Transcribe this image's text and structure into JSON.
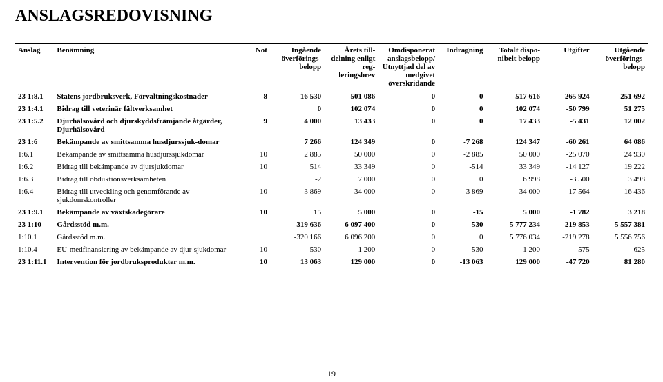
{
  "title": "ANSLAGSREDOVISNING",
  "header": {
    "anslag": "Anslag",
    "benamning": "Benämning",
    "not": "Not",
    "ingaende": "Ingående överförings-belopp",
    "arets": "Årets till-delning enligt reg-leringsbrev",
    "omdisp": "Omdisponerat anslagsbelopp/ Utnyttjad del av medgivet överskridande",
    "indragning": "Indragning",
    "totalt": "Totalt dispo-nibelt belopp",
    "utgifter": "Utgifter",
    "utgaende": "Utgående överförings-belopp"
  },
  "rows": [
    {
      "bold": true,
      "anslag": "23 1:8.1",
      "name": "Statens jordbruksverk, Förvaltningskostnader",
      "not": "8",
      "in": "16 530",
      "arets": "501 086",
      "omd": "0",
      "indr": "0",
      "tot": "517 616",
      "utg": "-265 924",
      "ut": "251 692"
    },
    {
      "bold": true,
      "anslag": "23 1:4.1",
      "name": "Bidrag till veterinär fältverksamhet",
      "not": "",
      "in": "0",
      "arets": "102 074",
      "omd": "0",
      "indr": "0",
      "tot": "102 074",
      "utg": "-50 799",
      "ut": "51 275"
    },
    {
      "bold": true,
      "anslag": "23 1:5.2",
      "name": "Djurhälsovård och djurskyddsfrämjande åtgärder, Djurhälsovård",
      "not": "9",
      "in": "4 000",
      "arets": "13 433",
      "omd": "0",
      "indr": "0",
      "tot": "17 433",
      "utg": "-5 431",
      "ut": "12 002"
    },
    {
      "bold": true,
      "anslag": "23 1:6",
      "name": "Bekämpande av smittsamma husdjurssjuk-domar",
      "not": "",
      "in": "7 266",
      "arets": "124 349",
      "omd": "0",
      "indr": "-7 268",
      "tot": "124 347",
      "utg": "-60 261",
      "ut": "64 086"
    },
    {
      "bold": false,
      "anslag": "1:6.1",
      "name": "Bekämpande av smittsamma husdjurssjukdomar",
      "not": "10",
      "in": "2 885",
      "arets": "50 000",
      "omd": "0",
      "indr": "-2 885",
      "tot": "50 000",
      "utg": "-25 070",
      "ut": "24 930"
    },
    {
      "bold": false,
      "anslag": "1:6.2",
      "name": "Bidrag till bekämpande av djursjukdomar",
      "not": "10",
      "in": "514",
      "arets": "33 349",
      "omd": "0",
      "indr": "-514",
      "tot": "33 349",
      "utg": "-14 127",
      "ut": "19 222"
    },
    {
      "bold": false,
      "anslag": "1:6.3",
      "name": "Bidrag till obduktionsverksamheten",
      "not": "",
      "in": "-2",
      "arets": "7 000",
      "omd": "0",
      "indr": "0",
      "tot": "6 998",
      "utg": "-3 500",
      "ut": "3 498"
    },
    {
      "bold": false,
      "anslag": "1:6.4",
      "name": "Bidrag till utveckling och genomförande av sjukdomskontroller",
      "not": "10",
      "in": "3 869",
      "arets": "34 000",
      "omd": "0",
      "indr": "-3 869",
      "tot": "34 000",
      "utg": "-17 564",
      "ut": "16 436"
    },
    {
      "bold": true,
      "anslag": "23 1:9.1",
      "name": "Bekämpande av växtskadegörare",
      "not": "10",
      "in": "15",
      "arets": "5 000",
      "omd": "0",
      "indr": "-15",
      "tot": "5 000",
      "utg": "-1 782",
      "ut": "3 218"
    },
    {
      "bold": true,
      "anslag": "23 1:10",
      "name": "Gårdsstöd m.m.",
      "not": "",
      "in": "-319 636",
      "arets": "6 097 400",
      "omd": "0",
      "indr": "-530",
      "tot": "5 777 234",
      "utg": "-219 853",
      "ut": "5 557 381"
    },
    {
      "bold": false,
      "anslag": "1:10.1",
      "name": "Gårdsstöd m.m.",
      "not": "",
      "in": "-320 166",
      "arets": "6 096 200",
      "omd": "0",
      "indr": "0",
      "tot": "5 776 034",
      "utg": "-219 278",
      "ut": "5 556 756"
    },
    {
      "bold": false,
      "anslag": "1:10.4",
      "name": "EU-medfinansiering av bekämpande av djur-sjukdomar",
      "not": "10",
      "in": "530",
      "arets": "1 200",
      "omd": "0",
      "indr": "-530",
      "tot": "1 200",
      "utg": "-575",
      "ut": "625"
    },
    {
      "bold": true,
      "anslag": "23 1:11.1",
      "name": "Intervention för jordbruksprodukter m.m.",
      "not": "10",
      "in": "13 063",
      "arets": "129 000",
      "omd": "0",
      "indr": "-13 063",
      "tot": "129 000",
      "utg": "-47 720",
      "ut": "81 280"
    }
  ],
  "page_number": "19"
}
